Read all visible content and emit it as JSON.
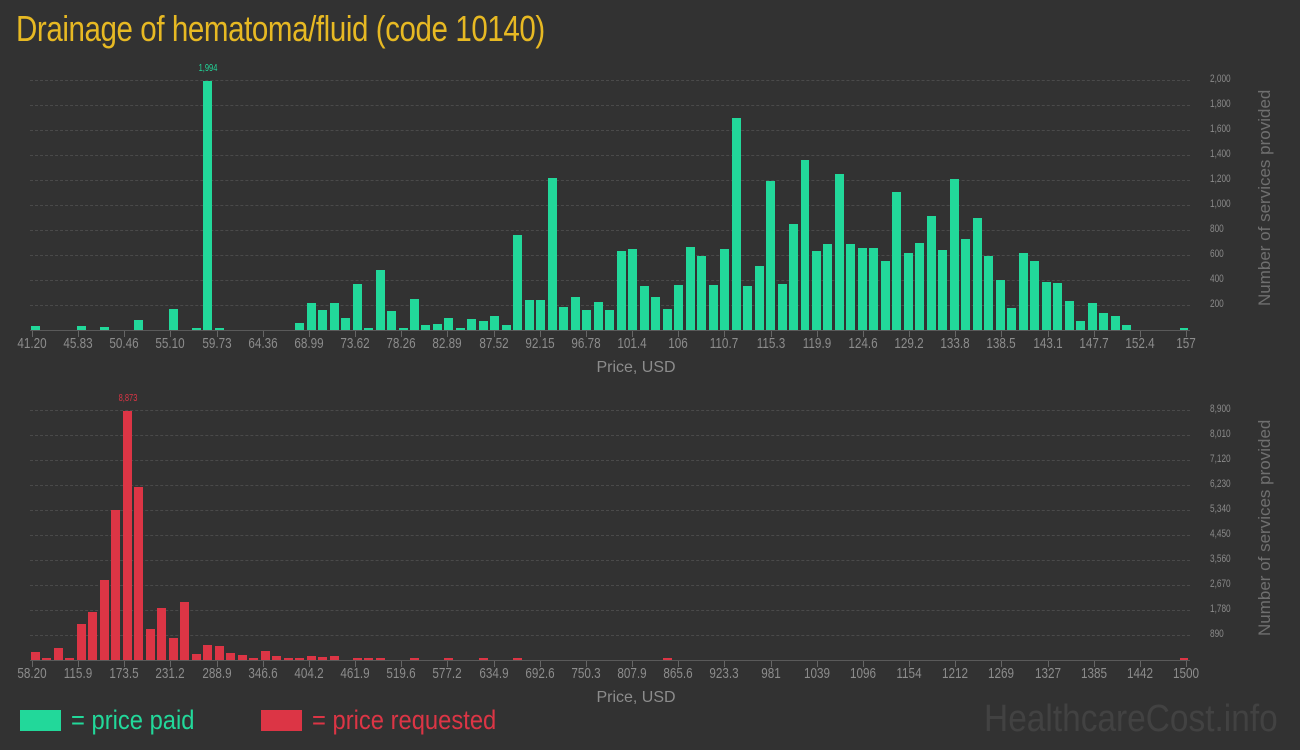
{
  "title": "Drainage of hematoma/fluid (code 10140)",
  "colors": {
    "title": "#e7b923",
    "paid": "#22d89a",
    "requested": "#dc3545",
    "background": "#323232"
  },
  "legend": {
    "paid_label": "= price paid",
    "requested_label": "= price requested"
  },
  "watermark": "HealthcareCost.info",
  "chart_data": [
    {
      "type": "bar",
      "name": "price paid",
      "title": "",
      "xlabel": "Price, USD",
      "ylabel": "Number of services provided",
      "ylim": [
        0,
        2000
      ],
      "y_ticks": [
        "200",
        "400",
        "600",
        "800",
        "1,000",
        "1,200",
        "1,400",
        "1,600",
        "1,800",
        "2,000"
      ],
      "x_ticks": [
        "41.20",
        "45.83",
        "50.46",
        "55.10",
        "59.73",
        "64.36",
        "68.99",
        "73.62",
        "78.26",
        "82.89",
        "87.52",
        "92.15",
        "96.78",
        "101.4",
        "106",
        "110.7",
        "115.3",
        "119.9",
        "124.6",
        "129.2",
        "133.8",
        "138.5",
        "143.1",
        "147.7",
        "152.4",
        "157"
      ],
      "peak_label": "1,994",
      "x_range": [
        41.2,
        157
      ],
      "values": [
        30,
        0,
        0,
        0,
        30,
        0,
        25,
        0,
        0,
        80,
        0,
        0,
        165,
        0,
        15,
        1994,
        15,
        0,
        0,
        0,
        0,
        0,
        0,
        55,
        220,
        160,
        220,
        100,
        370,
        10,
        480,
        155,
        20,
        245,
        40,
        50,
        95,
        15,
        85,
        70,
        110,
        40,
        760,
        240,
        240,
        1215,
        185,
        265,
        160,
        225,
        160,
        630,
        645,
        355,
        265,
        170,
        360,
        665,
        590,
        360,
        645,
        1695,
        350,
        515,
        1190,
        365,
        845,
        1360,
        635,
        685,
        1250,
        690,
        655,
        655,
        555,
        1105,
        620,
        700,
        910,
        640,
        1210,
        730,
        895,
        595,
        400,
        180,
        620,
        550,
        385,
        375,
        235,
        75,
        215,
        135,
        115,
        40,
        0,
        0,
        0,
        0,
        15
      ],
      "grid": true
    },
    {
      "type": "bar",
      "name": "price requested",
      "title": "",
      "xlabel": "Price, USD",
      "ylabel": "Number of services provided",
      "ylim": [
        0,
        8900
      ],
      "y_ticks": [
        "890",
        "1,780",
        "2,670",
        "3,560",
        "4,450",
        "5,340",
        "6,230",
        "7,120",
        "8,010",
        "8,900"
      ],
      "x_ticks": [
        "58.20",
        "115.9",
        "173.5",
        "231.2",
        "288.9",
        "346.6",
        "404.2",
        "461.9",
        "519.6",
        "577.2",
        "634.9",
        "692.6",
        "750.3",
        "807.9",
        "865.6",
        "923.3",
        "981",
        "1039",
        "1096",
        "1154",
        "1212",
        "1269",
        "1327",
        "1385",
        "1442",
        "1500"
      ],
      "peak_label": "8,873",
      "x_range": [
        58.2,
        1500
      ],
      "values": [
        290,
        70,
        420,
        70,
        1280,
        1700,
        2850,
        5340,
        8873,
        6160,
        1100,
        1860,
        780,
        2080,
        210,
        530,
        500,
        250,
        190,
        30,
        310,
        130,
        40,
        30,
        130,
        100,
        140,
        0,
        30,
        30,
        30,
        0,
        0,
        60,
        0,
        0,
        30,
        0,
        0,
        30,
        0,
        0,
        30,
        0,
        0,
        0,
        0,
        0,
        0,
        0,
        0,
        0,
        0,
        0,
        0,
        30,
        0,
        0,
        0,
        0,
        0,
        0,
        0,
        0,
        0,
        0,
        0,
        0,
        0,
        0,
        0,
        0,
        0,
        0,
        0,
        0,
        0,
        0,
        0,
        0,
        0,
        0,
        0,
        0,
        0,
        0,
        0,
        0,
        0,
        0,
        0,
        0,
        0,
        0,
        0,
        0,
        0,
        0,
        0,
        0,
        45
      ],
      "grid": true
    }
  ]
}
